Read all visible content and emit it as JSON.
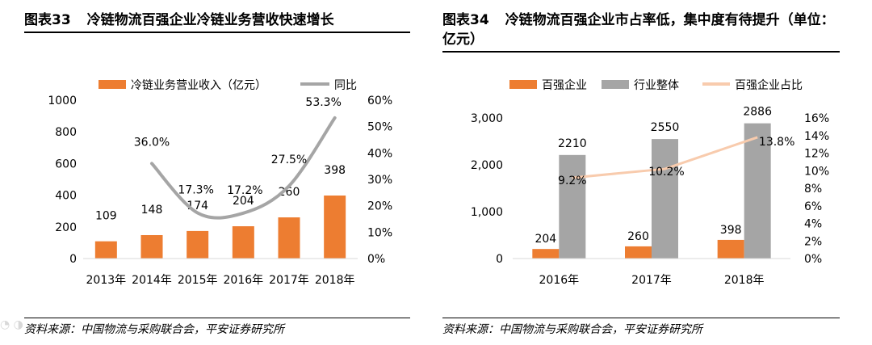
{
  "left": {
    "fig_num": "图表33",
    "fig_title": "冷链物流百强企业冷链业务营收快速增长",
    "source": "资料来源：中国物流与采购联合会，平安证券研究所"
  },
  "right": {
    "fig_num": "图表34",
    "fig_title": "冷链物流百强企业市占率低，集中度有待提升（单位：亿元）",
    "source": "资料来源：中国物流与采购联合会，平安证券研究所"
  },
  "colors": {
    "orange": "#ED7D31",
    "gray": "#A5A5A5",
    "line_gray": "#A5A5A5",
    "peach": "#F8CBAD"
  },
  "chart_data": [
    {
      "type": "bar",
      "title": "冷链物流百强企业冷链业务营收快速增长",
      "categories": [
        "2013年",
        "2014年",
        "2015年",
        "2016年",
        "2017年",
        "2018年"
      ],
      "series": [
        {
          "name": "冷链业务营业收入（亿元）",
          "type": "bar",
          "axis": "left",
          "values": [
            109,
            148,
            174,
            204,
            260,
            398
          ],
          "labels": [
            "109",
            "148",
            "174",
            "204",
            "260",
            "398"
          ]
        },
        {
          "name": "同比",
          "type": "line",
          "axis": "right",
          "values": [
            null,
            36.0,
            17.3,
            17.2,
            27.5,
            53.3
          ],
          "labels": [
            "",
            "36.0%",
            "17.3%",
            "17.2%",
            "27.5%",
            "53.3%"
          ]
        }
      ],
      "ylim": [
        0,
        1000
      ],
      "yticks": [
        "0",
        "200",
        "400",
        "600",
        "800",
        "1000"
      ],
      "y2lim": [
        0,
        60
      ],
      "y2ticks": [
        "0%",
        "10%",
        "20%",
        "30%",
        "40%",
        "50%",
        "60%"
      ],
      "legend": "top"
    },
    {
      "type": "bar",
      "title": "冷链物流百强企业市占率低，集中度有待提升（单位：亿元）",
      "categories": [
        "2016年",
        "2017年",
        "2018年"
      ],
      "series": [
        {
          "name": "百强企业",
          "type": "bar",
          "axis": "left",
          "values": [
            204,
            260,
            398
          ],
          "labels": [
            "204",
            "260",
            "398"
          ]
        },
        {
          "name": "行业整体",
          "type": "bar",
          "axis": "left",
          "values": [
            2210,
            2550,
            2886
          ],
          "labels": [
            "2210",
            "2550",
            "2886"
          ]
        },
        {
          "name": "百强企业占比",
          "type": "line",
          "axis": "right",
          "values": [
            9.2,
            10.2,
            13.8
          ],
          "labels": [
            "9.2%",
            "10.2%",
            "13.8%"
          ]
        }
      ],
      "ylim": [
        0,
        3000
      ],
      "yticks": [
        "0",
        "1,000",
        "2,000",
        "3,000"
      ],
      "y2lim": [
        0,
        16
      ],
      "y2ticks": [
        "0%",
        "2%",
        "4%",
        "6%",
        "8%",
        "10%",
        "12%",
        "14%",
        "16%"
      ],
      "legend": "top"
    }
  ]
}
